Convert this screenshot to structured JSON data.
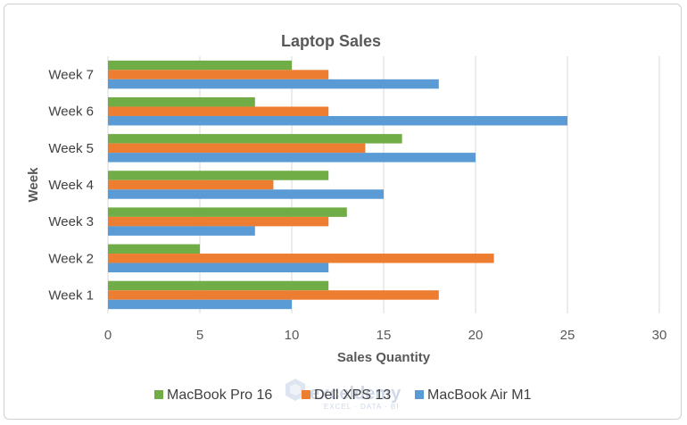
{
  "chart_data": {
    "type": "bar",
    "orientation": "horizontal",
    "title": "Laptop Sales",
    "xlabel": "Sales Quantity",
    "ylabel": "Week",
    "categories": [
      "Week 1",
      "Week 2",
      "Week 3",
      "Week 4",
      "Week 5",
      "Week 6",
      "Week 7"
    ],
    "series": [
      {
        "name": "MacBook Pro 16",
        "color": "#70ad47",
        "values": [
          12,
          5,
          13,
          12,
          16,
          8,
          10
        ]
      },
      {
        "name": "Dell XPS 13",
        "color": "#ed7d31",
        "values": [
          18,
          21,
          12,
          9,
          14,
          12,
          12
        ]
      },
      {
        "name": "MacBook Air M1",
        "color": "#5b9bd5",
        "values": [
          10,
          12,
          8,
          15,
          20,
          25,
          18
        ]
      }
    ],
    "xlim": [
      0,
      30
    ],
    "xticks": [
      0,
      5,
      10,
      15,
      20,
      25,
      30
    ],
    "grid": true,
    "legend_position": "bottom"
  },
  "watermark": {
    "name": "exceldemy",
    "tagline": "EXCEL · DATA · BI"
  }
}
